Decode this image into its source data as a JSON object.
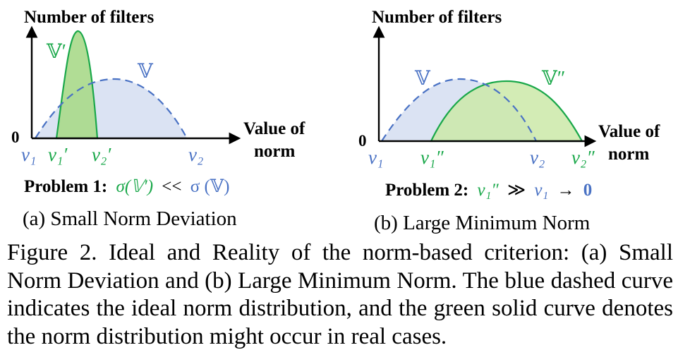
{
  "panel_a": {
    "y_axis_label": "Number of filters",
    "x_axis_label_line1": "Value of",
    "x_axis_label_line2": "norm",
    "origin_label": "0",
    "ideal_curve_label": "𝕍",
    "real_curve_label": "𝕍′",
    "tick_labels": [
      "v₁",
      "v₁′",
      "v₂′",
      "v₂"
    ],
    "problem_prefix": "Problem 1:",
    "problem_left": "σ(𝕍′)",
    "problem_relation": "<<",
    "problem_right": "σ (𝕍)",
    "subcaption": "(a) Small Norm Deviation"
  },
  "panel_b": {
    "y_axis_label": "Number of filters",
    "x_axis_label_line1": "Value of",
    "x_axis_label_line2": "norm",
    "origin_label": "0",
    "ideal_curve_label": "𝕍",
    "real_curve_label": "𝕍″",
    "tick_labels": [
      "v₁",
      "v₁″",
      "v₂",
      "v₂″"
    ],
    "problem_prefix": "Problem 2:",
    "problem_left": "v₁″",
    "problem_relation": "≫",
    "problem_mid": "v₁",
    "problem_arrow": "→",
    "problem_zero": "0",
    "subcaption": "(b) Large Minimum Norm"
  },
  "caption": {
    "text": "Figure 2.  Ideal and Reality of the norm-based criterion: (a) Small Norm Deviation and (b) Large Minimum Norm. The blue dashed curve indicates the ideal norm distribution, and the green solid curve denotes the norm distribution might occur in real cases."
  },
  "colors": {
    "ideal": "#4a72c4",
    "ideal_fill": "#dbe3f3",
    "real": "#1aa84a",
    "real_fill_a": "#a8d98a",
    "real_fill_b": "#cbe9a8"
  }
}
